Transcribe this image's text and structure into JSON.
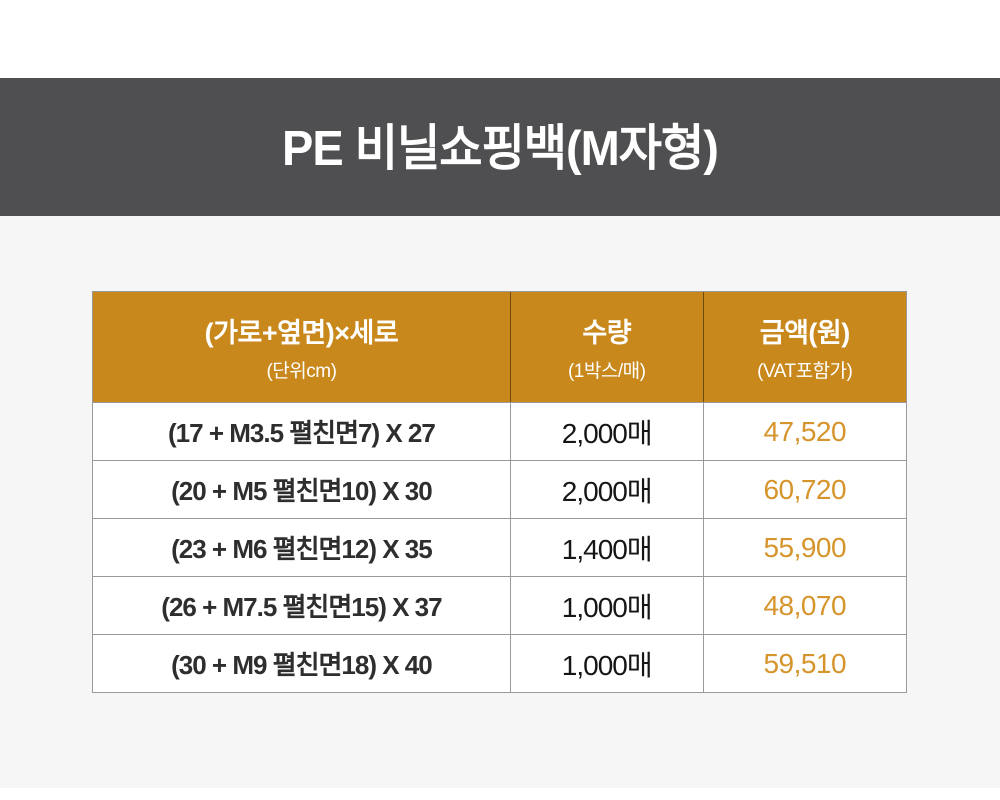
{
  "page": {
    "title": "PE 비닐쇼핑백(M자형)"
  },
  "colors": {
    "band_bg": "#4F4F51",
    "page_bg": "#F6F6F6",
    "header_bg": "#C8881C",
    "price_text": "#D6952C",
    "row_text": "#2E2E2E",
    "border": "#999999"
  },
  "table": {
    "columns": [
      {
        "label": "(가로+옆면)×세로",
        "sublabel": "(단위cm)"
      },
      {
        "label": "수량",
        "sublabel": "(1박스/매)"
      },
      {
        "label": "금액(원)",
        "sublabel": "(VAT포함가)"
      }
    ],
    "rows": [
      {
        "size": "(17 + M3.5 펼친면7) X 27",
        "qty": "2,000매",
        "price": "47,520"
      },
      {
        "size": "(20 + M5 펼친면10) X 30",
        "qty": "2,000매",
        "price": "60,720"
      },
      {
        "size": "(23 + M6 펼친면12) X 35",
        "qty": "1,400매",
        "price": "55,900"
      },
      {
        "size": "(26 + M7.5 펼친면15) X 37",
        "qty": "1,000매",
        "price": "48,070"
      },
      {
        "size": "(30 + M9 펼친면18) X 40",
        "qty": "1,000매",
        "price": "59,510"
      }
    ]
  }
}
